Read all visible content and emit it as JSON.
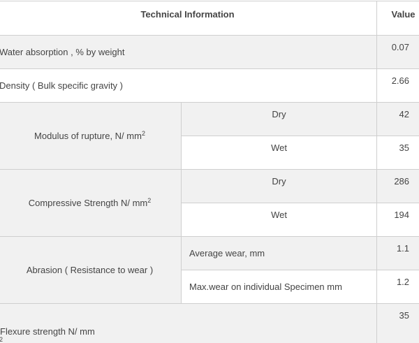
{
  "table": {
    "headers": {
      "technical_information": "Technical Information",
      "value": "Value"
    },
    "rows": {
      "water_absorption": {
        "label": "Water absorption , % by weight",
        "value": "0.07"
      },
      "density": {
        "label": "Density ( Bulk specific gravity )",
        "value": "2.66"
      },
      "modulus_of_rupture": {
        "label": "Modulus of rupture, N/ mm",
        "label_sup": "2",
        "dry_label": "Dry",
        "dry_value": "42",
        "wet_label": "Wet",
        "wet_value": "35"
      },
      "compressive_strength": {
        "label": "Compressive Strength N/ mm",
        "label_sup": "2",
        "dry_label": "Dry",
        "dry_value": "286",
        "wet_label": "Wet",
        "wet_value": "194"
      },
      "abrasion": {
        "label": "Abrasion ( Resistance to wear )",
        "average_label": "Average wear, mm",
        "average_value": "1.1",
        "max_label": "Max.wear on individual Specimen mm",
        "max_value": "1.2"
      },
      "flexure_strength": {
        "label": "Flexure strength  N/ mm",
        "label_sup": "2",
        "value": "35"
      }
    }
  }
}
